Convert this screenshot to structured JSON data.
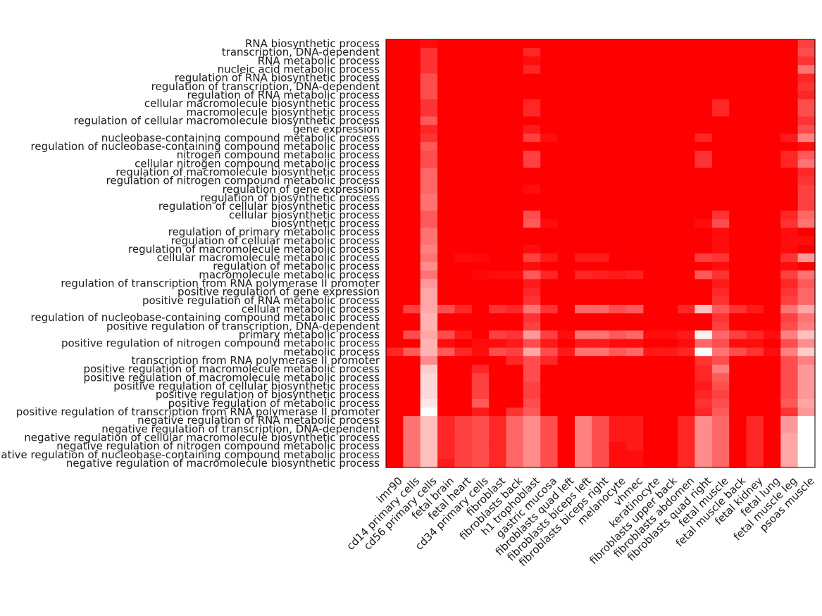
{
  "chart_data": {
    "type": "heatmap",
    "title": "",
    "xlabel": "",
    "ylabel": "",
    "colormap": {
      "low": "#ff0000",
      "high": "#ffffff"
    },
    "grid": false,
    "legend": "none",
    "columns": [
      "imr90",
      "cd14 primary cells",
      "cd56 primary cells",
      "fetal brain",
      "fetal heart",
      "cd34 primary cells",
      "fibroblast",
      "fibroblasts back",
      "h1 trophoblast",
      "gastric mucosa",
      "fibroblasts quad left",
      "fibroblasts biceps left",
      "fibroblasts biceps right",
      "melanocyte",
      "vhmec",
      "keratinocyte",
      "fibroblasts upper back",
      "fibroblasts abdomen",
      "fibroblasts quad right",
      "fetal muscle",
      "fetal muscle back",
      "fetal kidney",
      "fetal lung",
      "fetal muscle leg",
      "psoas muscle"
    ],
    "rows": [
      "RNA biosynthetic process",
      "transcription, DNA-dependent",
      "RNA metabolic process",
      "nucleic acid metabolic process",
      "regulation of RNA biosynthetic process",
      "regulation of transcription, DNA-dependent",
      "regulation of RNA metabolic process",
      "cellular macromolecule biosynthetic process",
      "macromolecule biosynthetic process",
      "regulation of cellular macromolecule biosynthetic process",
      "gene expression",
      "nucleobase-containing compound metabolic process",
      "regulation of nucleobase-containing compound metabolic process",
      "nitrogen compound metabolic process",
      "cellular nitrogen compound metabolic process",
      "regulation of macromolecule biosynthetic process",
      "regulation of nitrogen compound metabolic process",
      "regulation of gene expression",
      "regulation of biosynthetic process",
      "regulation of cellular biosynthetic process",
      "cellular biosynthetic process",
      "biosynthetic process",
      "regulation of primary metabolic process",
      "regulation of cellular metabolic process",
      "regulation of macromolecule metabolic process",
      "cellular macromolecule metabolic process",
      "regulation of metabolic process",
      "macromolecule metabolic process",
      "regulation of transcription from RNA polymerase II promoter",
      "positive regulation of gene expression",
      "positive regulation of RNA metabolic process",
      "cellular metabolic process",
      "regulation of nucleobase-containing compound metabolic process",
      "positive regulation of transcription, DNA-dependent",
      "primary metabolic process",
      "positive regulation of nitrogen compound metabolic process",
      "metabolic process",
      "transcription from RNA polymerase II promoter",
      "positive regulation of macromolecule metabolic process",
      "positive regulation of macromolecule metabolic process",
      "positive regulation of cellular biosynthetic process",
      "positive regulation of biosynthetic process",
      "positive regulation of metabolic process",
      "positive regulation of transcription from RNA polymerase II promoter",
      "negative regulation of RNA metabolic process",
      "negative regulation of transcription, DNA-dependent",
      "negative regulation of cellular macromolecule biosynthetic process",
      "negative regulation of nitrogen compound metabolic process",
      "negative regulation of nucleobase-containing compound metabolic process",
      "negative regulation of macromolecule biosynthetic process"
    ],
    "values": [
      [
        0,
        0,
        0.05,
        0,
        0,
        0,
        0,
        0,
        0,
        0,
        0,
        0,
        0,
        0,
        0,
        0,
        0,
        0,
        0,
        0,
        0,
        0,
        0,
        0,
        0.25
      ],
      [
        0,
        0,
        0.2,
        0,
        0,
        0,
        0,
        0,
        0.15,
        0,
        0,
        0,
        0,
        0,
        0,
        0,
        0,
        0,
        0,
        0,
        0,
        0,
        0,
        0,
        0.3
      ],
      [
        0,
        0,
        0.2,
        0,
        0,
        0,
        0,
        0,
        0.05,
        0,
        0,
        0,
        0,
        0,
        0,
        0,
        0,
        0,
        0,
        0,
        0,
        0,
        0,
        0,
        0.2
      ],
      [
        0,
        0,
        0.2,
        0,
        0,
        0,
        0,
        0,
        0.15,
        0,
        0,
        0,
        0,
        0,
        0,
        0,
        0,
        0,
        0,
        0,
        0,
        0,
        0,
        0,
        0.45
      ],
      [
        0,
        0,
        0.3,
        0,
        0,
        0,
        0,
        0,
        0,
        0,
        0,
        0,
        0,
        0,
        0,
        0,
        0,
        0,
        0,
        0,
        0,
        0,
        0,
        0,
        0.15
      ],
      [
        0,
        0,
        0.3,
        0,
        0,
        0,
        0,
        0,
        0,
        0,
        0,
        0,
        0,
        0,
        0,
        0,
        0,
        0,
        0,
        0,
        0,
        0,
        0,
        0,
        0.2
      ],
      [
        0,
        0,
        0.3,
        0,
        0,
        0,
        0,
        0,
        0,
        0,
        0,
        0,
        0,
        0,
        0,
        0,
        0,
        0,
        0,
        0,
        0,
        0,
        0,
        0,
        0.15
      ],
      [
        0,
        0,
        0.2,
        0,
        0,
        0,
        0,
        0,
        0.15,
        0,
        0,
        0,
        0,
        0,
        0,
        0,
        0,
        0,
        0,
        0.15,
        0,
        0,
        0,
        0,
        0.3
      ],
      [
        0,
        0,
        0.2,
        0,
        0,
        0,
        0,
        0,
        0.15,
        0,
        0,
        0,
        0,
        0,
        0,
        0,
        0,
        0,
        0,
        0.15,
        0,
        0,
        0,
        0,
        0.3
      ],
      [
        0,
        0,
        0.35,
        0,
        0,
        0,
        0,
        0,
        0,
        0,
        0,
        0,
        0,
        0,
        0,
        0,
        0,
        0,
        0,
        0,
        0,
        0,
        0,
        0,
        0.2
      ],
      [
        0,
        0,
        0.15,
        0,
        0,
        0,
        0,
        0,
        0.1,
        0,
        0,
        0,
        0,
        0,
        0,
        0,
        0,
        0,
        0,
        0,
        0,
        0,
        0,
        0,
        0.3
      ],
      [
        0,
        0,
        0.2,
        0,
        0,
        0,
        0,
        0,
        0.25,
        0.05,
        0,
        0,
        0,
        0,
        0,
        0,
        0,
        0,
        0.15,
        0,
        0,
        0,
        0,
        0.1,
        0.5
      ],
      [
        0,
        0,
        0.35,
        0,
        0,
        0,
        0,
        0,
        0,
        0,
        0,
        0,
        0,
        0,
        0,
        0,
        0,
        0,
        0,
        0,
        0,
        0,
        0,
        0,
        0.05
      ],
      [
        0,
        0,
        0.3,
        0,
        0,
        0,
        0,
        0,
        0.25,
        0,
        0,
        0,
        0,
        0,
        0,
        0,
        0,
        0,
        0.2,
        0,
        0,
        0,
        0,
        0.15,
        0.35
      ],
      [
        0,
        0,
        0.3,
        0,
        0,
        0,
        0,
        0,
        0.25,
        0,
        0,
        0,
        0,
        0,
        0,
        0,
        0,
        0,
        0.2,
        0,
        0,
        0,
        0,
        0.15,
        0.45
      ],
      [
        0,
        0,
        0.4,
        0,
        0,
        0,
        0,
        0,
        0,
        0,
        0,
        0,
        0,
        0,
        0,
        0,
        0,
        0,
        0,
        0,
        0,
        0,
        0,
        0,
        0.15
      ],
      [
        0,
        0,
        0.4,
        0,
        0,
        0,
        0,
        0,
        0,
        0,
        0,
        0,
        0,
        0,
        0,
        0,
        0,
        0,
        0,
        0,
        0,
        0,
        0,
        0,
        0.2
      ],
      [
        0,
        0,
        0.4,
        0,
        0,
        0,
        0,
        0,
        0.05,
        0,
        0,
        0,
        0,
        0,
        0,
        0,
        0,
        0,
        0,
        0,
        0,
        0,
        0,
        0,
        0.25
      ],
      [
        0,
        0,
        0.45,
        0,
        0,
        0,
        0,
        0,
        0,
        0,
        0,
        0,
        0,
        0,
        0,
        0,
        0,
        0,
        0,
        0,
        0,
        0,
        0,
        0,
        0.25
      ],
      [
        0,
        0,
        0.45,
        0,
        0,
        0,
        0,
        0,
        0,
        0,
        0,
        0,
        0,
        0,
        0,
        0,
        0,
        0,
        0,
        0,
        0,
        0,
        0,
        0,
        0.25
      ],
      [
        0,
        0,
        0.35,
        0,
        0,
        0,
        0,
        0,
        0.3,
        0,
        0,
        0,
        0,
        0,
        0,
        0,
        0,
        0,
        0,
        0.2,
        0,
        0,
        0,
        0.15,
        0.4
      ],
      [
        0,
        0,
        0.35,
        0,
        0,
        0,
        0,
        0,
        0.35,
        0.05,
        0,
        0,
        0,
        0,
        0,
        0,
        0,
        0,
        0.05,
        0.3,
        0,
        0,
        0,
        0.2,
        0.45
      ],
      [
        0,
        0,
        0.45,
        0,
        0,
        0,
        0,
        0,
        0,
        0,
        0,
        0,
        0,
        0,
        0,
        0,
        0,
        0,
        0,
        0.05,
        0,
        0,
        0,
        0.05,
        0
      ],
      [
        0,
        0,
        0.45,
        0,
        0,
        0,
        0,
        0,
        0,
        0,
        0,
        0,
        0,
        0,
        0,
        0,
        0,
        0,
        0,
        0.05,
        0,
        0,
        0,
        0.05,
        0.05
      ],
      [
        0,
        0,
        0.5,
        0,
        0,
        0,
        0,
        0,
        0.05,
        0,
        0,
        0,
        0,
        0,
        0,
        0,
        0,
        0,
        0,
        0.05,
        0,
        0,
        0,
        0.05,
        0
      ],
      [
        0,
        0,
        0.45,
        0,
        0.05,
        0.03,
        0,
        0,
        0.25,
        0.1,
        0,
        0.1,
        0.1,
        0,
        0,
        0,
        0,
        0,
        0.25,
        0.2,
        0,
        0,
        0,
        0.2,
        0.6
      ],
      [
        0,
        0,
        0.55,
        0,
        0,
        0,
        0,
        0,
        0.05,
        0,
        0,
        0,
        0,
        0,
        0,
        0,
        0,
        0,
        0,
        0.05,
        0,
        0,
        0,
        0.05,
        0
      ],
      [
        0,
        0,
        0.45,
        0,
        0,
        0.03,
        0.05,
        0.05,
        0.35,
        0.15,
        0,
        0.15,
        0.12,
        0.1,
        0.12,
        0,
        0,
        0,
        0.35,
        0.2,
        0,
        0,
        0,
        0.25,
        0.45
      ],
      [
        0,
        0,
        0.6,
        0,
        0,
        0,
        0,
        0,
        0.1,
        0,
        0,
        0,
        0,
        0,
        0,
        0,
        0,
        0,
        0,
        0.1,
        0,
        0,
        0,
        0.15,
        0.35
      ],
      [
        0,
        0,
        0.65,
        0,
        0,
        0,
        0,
        0,
        0.15,
        0,
        0,
        0,
        0,
        0,
        0,
        0,
        0,
        0,
        0,
        0.15,
        0,
        0,
        0,
        0.2,
        0.4
      ],
      [
        0,
        0,
        0.65,
        0,
        0,
        0,
        0,
        0,
        0.2,
        0,
        0,
        0,
        0,
        0,
        0,
        0,
        0,
        0,
        0,
        0.2,
        0,
        0,
        0,
        0.25,
        0.4
      ],
      [
        0,
        0.25,
        0.65,
        0.3,
        0.15,
        0,
        0.2,
        0.15,
        0.45,
        0.2,
        0,
        0.4,
        0.4,
        0.3,
        0.35,
        0,
        0,
        0.15,
        0.75,
        0.35,
        0.2,
        0.1,
        0,
        0.45,
        0.65
      ],
      [
        0,
        0,
        0.7,
        0,
        0,
        0,
        0,
        0,
        0.2,
        0,
        0,
        0,
        0,
        0,
        0,
        0,
        0,
        0,
        0,
        0.2,
        0,
        0,
        0,
        0.25,
        0.45
      ],
      [
        0,
        0,
        0.7,
        0,
        0,
        0,
        0,
        0,
        0.25,
        0,
        0,
        0,
        0,
        0,
        0,
        0,
        0,
        0,
        0,
        0.25,
        0,
        0,
        0,
        0.3,
        0.5
      ],
      [
        0,
        0.3,
        0.65,
        0.3,
        0.1,
        0,
        0.25,
        0.2,
        0.6,
        0.25,
        0.05,
        0.45,
        0.45,
        0.35,
        0.4,
        0.05,
        0.05,
        0.1,
        0.95,
        0.4,
        0.25,
        0.15,
        0.05,
        0.5,
        0.75
      ],
      [
        0,
        0,
        0.7,
        0.05,
        0,
        0.05,
        0.05,
        0.1,
        0.3,
        0.1,
        0,
        0.1,
        0.1,
        0.05,
        0.05,
        0,
        0,
        0.05,
        0.4,
        0.3,
        0.05,
        0.05,
        0,
        0.3,
        0.55
      ],
      [
        0.15,
        0.35,
        0.7,
        0.35,
        0.15,
        0.05,
        0.3,
        0.25,
        0.65,
        0.3,
        0.1,
        0.45,
        0.45,
        0.35,
        0.4,
        0.1,
        0.1,
        0.15,
        1,
        0.45,
        0.3,
        0.2,
        0.05,
        0.5,
        0.8
      ],
      [
        0,
        0,
        0.55,
        0,
        0,
        0,
        0,
        0.15,
        0.3,
        0.15,
        0,
        0,
        0,
        0,
        0,
        0,
        0,
        0,
        0.2,
        0.3,
        0,
        0,
        0,
        0.3,
        0.5
      ],
      [
        0,
        0,
        0.8,
        0,
        0,
        0.15,
        0,
        0,
        0.3,
        0,
        0,
        0,
        0,
        0,
        0,
        0,
        0,
        0,
        0.15,
        0.5,
        0,
        0,
        0,
        0.3,
        0.6
      ],
      [
        0,
        0,
        0.85,
        0,
        0,
        0.25,
        0,
        0,
        0.3,
        0,
        0,
        0,
        0,
        0,
        0,
        0,
        0,
        0,
        0.15,
        0.35,
        0,
        0,
        0,
        0.3,
        0.6
      ],
      [
        0,
        0,
        0.85,
        0,
        0,
        0.25,
        0,
        0,
        0.25,
        0,
        0,
        0,
        0,
        0,
        0,
        0,
        0,
        0,
        0.1,
        0.3,
        0,
        0,
        0,
        0.3,
        0.6
      ],
      [
        0,
        0,
        0.85,
        0,
        0,
        0.25,
        0,
        0,
        0.25,
        0,
        0,
        0,
        0,
        0,
        0,
        0,
        0,
        0,
        0.15,
        0.25,
        0,
        0,
        0,
        0.3,
        0.6
      ],
      [
        0,
        0,
        0.9,
        0,
        0,
        0.35,
        0,
        0,
        0.3,
        0,
        0,
        0,
        0,
        0,
        0,
        0,
        0,
        0,
        0.2,
        0.3,
        0,
        0,
        0,
        0.35,
        0.65
      ],
      [
        0,
        0,
        1,
        0,
        0,
        0.1,
        0,
        0.2,
        0.35,
        0,
        0,
        0,
        0,
        0,
        0,
        0,
        0,
        0,
        0.15,
        0.35,
        0,
        0,
        0,
        0.2,
        0.6
      ],
      [
        0,
        0.45,
        0.75,
        0.15,
        0.25,
        0.3,
        0.15,
        0.4,
        0.55,
        0.3,
        0,
        0.5,
        0.3,
        0.1,
        0.1,
        0,
        0,
        0.15,
        0.55,
        0.4,
        0,
        0.15,
        0,
        0.6,
        1
      ],
      [
        0,
        0.45,
        0.75,
        0.15,
        0.25,
        0.3,
        0.15,
        0.4,
        0.55,
        0.3,
        0,
        0.5,
        0.3,
        0.1,
        0.1,
        0,
        0,
        0.15,
        0.55,
        0.4,
        0,
        0.15,
        0,
        0.6,
        1
      ],
      [
        0,
        0.45,
        0.75,
        0.15,
        0.25,
        0.3,
        0.15,
        0.4,
        0.55,
        0.3,
        0,
        0.5,
        0.3,
        0.1,
        0.1,
        0,
        0,
        0.15,
        0.55,
        0.4,
        0,
        0.15,
        0,
        0.65,
        1
      ],
      [
        0,
        0.45,
        0.75,
        0.15,
        0.25,
        0.3,
        0.15,
        0.4,
        0.55,
        0.3,
        0,
        0.5,
        0.3,
        0.05,
        0.1,
        0,
        0,
        0.15,
        0.55,
        0.4,
        0,
        0.15,
        0,
        0.65,
        1
      ],
      [
        0,
        0.45,
        0.75,
        0.15,
        0.25,
        0.3,
        0.15,
        0.4,
        0.55,
        0.3,
        0,
        0.5,
        0.3,
        0.05,
        0.05,
        0,
        0,
        0.15,
        0.55,
        0.4,
        0,
        0.15,
        0,
        0.65,
        1
      ],
      [
        0,
        0.45,
        0.75,
        0.1,
        0.25,
        0.3,
        0.15,
        0.4,
        0.55,
        0.3,
        0,
        0.5,
        0.3,
        0.05,
        0.05,
        0,
        0,
        0.15,
        0.55,
        0.4,
        0,
        0.15,
        0,
        0.65,
        1
      ]
    ]
  }
}
